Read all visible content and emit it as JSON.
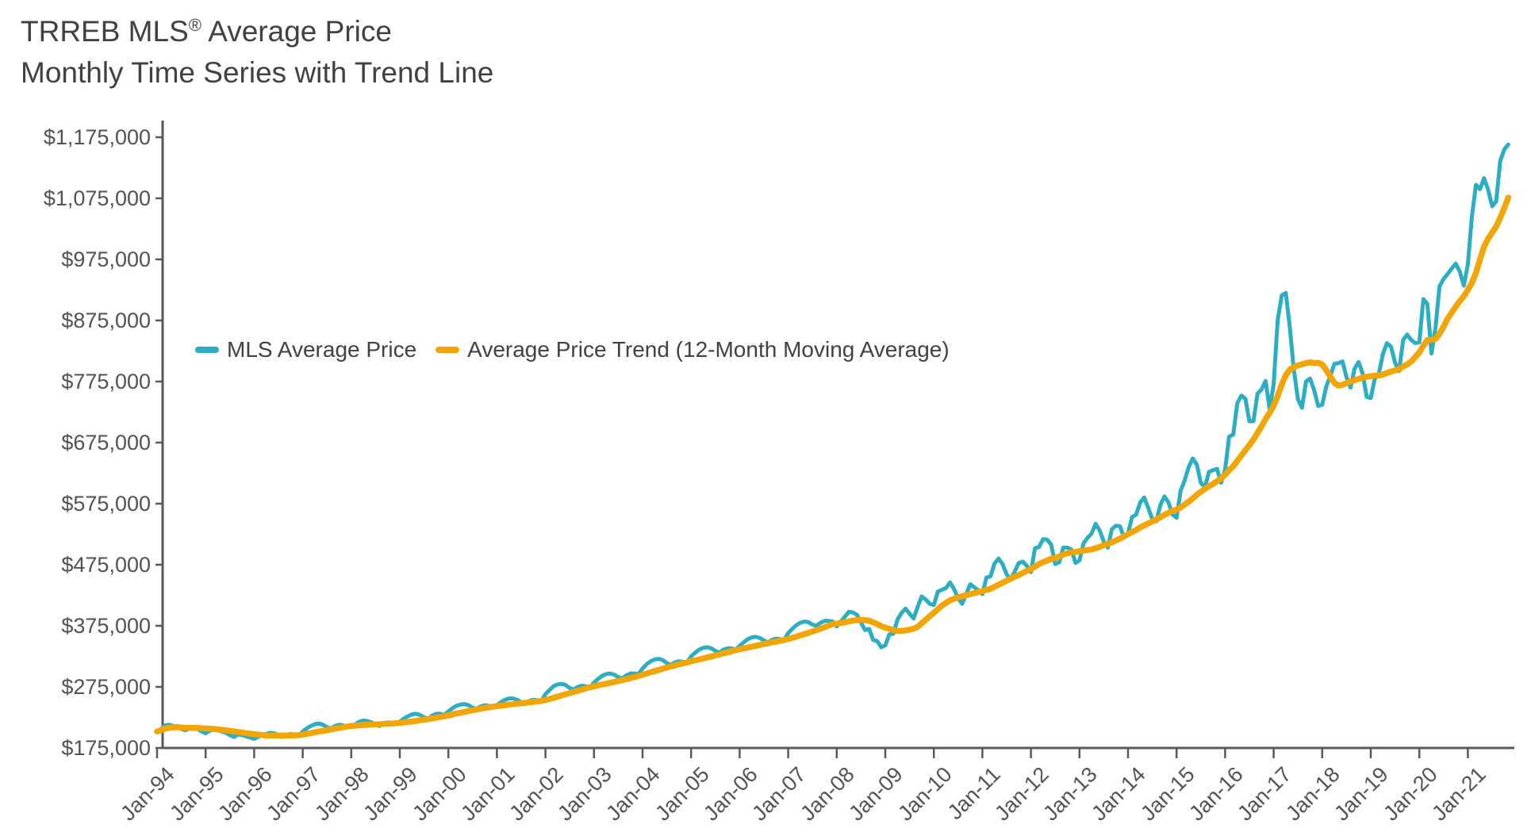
{
  "title": {
    "line1_brand": "TRREB MLS",
    "line1_reg": "®",
    "line1_rest": " Average Price",
    "line2": "Monthly Time Series with Trend Line"
  },
  "axes": {
    "line_color": "#58595B",
    "text_color": "#515254"
  },
  "chart_data": {
    "type": "line",
    "title": "TRREB MLS® Average Price — Monthly Time Series with Trend Line",
    "x_start": "Jan-94",
    "x_end": "Nov-21",
    "months_per_point": 1,
    "grid": false,
    "legend_position": "inside-upper-left",
    "ylim": [
      175000,
      1175000
    ],
    "y_tick_step": 100000,
    "y_tick_labels": [
      "$175,000",
      "$275,000",
      "$375,000",
      "$475,000",
      "$575,000",
      "$675,000",
      "$775,000",
      "$875,000",
      "$975,000",
      "$1,075,000",
      "$1,175,000"
    ],
    "x_tick_labels": [
      "Jan-94",
      "Jan-95",
      "Jan-96",
      "Jan-97",
      "Jan-98",
      "Jan-99",
      "Jan-00",
      "Jan-01",
      "Jan-02",
      "Jan-03",
      "Jan-04",
      "Jan-05",
      "Jan-06",
      "Jan-07",
      "Jan-08",
      "Jan-09",
      "Jan-10",
      "Jan-11",
      "Jan-12",
      "Jan-13",
      "Jan-14",
      "Jan-15",
      "Jan-16",
      "Jan-17",
      "Jan-18",
      "Jan-19",
      "Jan-20",
      "Jan-21"
    ],
    "series": [
      {
        "name": "MLS Average Price",
        "color": "#2BADC3",
        "values": [
          202000,
          206000,
          212000,
          213000,
          211000,
          210000,
          206000,
          204000,
          207000,
          208000,
          206000,
          202000,
          199000,
          203000,
          205000,
          204000,
          202000,
          200000,
          196000,
          193000,
          197000,
          196000,
          194000,
          192000,
          190000,
          193000,
          196000,
          198000,
          200000,
          199000,
          196000,
          193000,
          196000,
          198000,
          197000,
          195000,
          202000,
          207000,
          211000,
          214000,
          215000,
          213000,
          209000,
          207000,
          211000,
          213000,
          212000,
          209000,
          210000,
          214000,
          218000,
          220000,
          219000,
          217000,
          213000,
          211000,
          215000,
          217000,
          216000,
          214000,
          218000,
          223000,
          227000,
          230000,
          231000,
          229000,
          225000,
          223000,
          228000,
          231000,
          231000,
          229000,
          235000,
          240000,
          244000,
          246000,
          247000,
          245000,
          241000,
          239000,
          243000,
          245000,
          244000,
          242000,
          245000,
          250000,
          254000,
          256000,
          256000,
          254000,
          250000,
          248000,
          252000,
          254000,
          253000,
          252000,
          263000,
          270000,
          276000,
          279000,
          280000,
          278000,
          273000,
          271000,
          275000,
          277000,
          276000,
          274000,
          282000,
          288000,
          293000,
          296000,
          297000,
          295000,
          291000,
          289000,
          294000,
          297000,
          297000,
          296000,
          305000,
          312000,
          317000,
          320000,
          321000,
          319000,
          314000,
          311000,
          315000,
          317000,
          316000,
          315000,
          325000,
          331000,
          336000,
          339000,
          340000,
          338000,
          334000,
          331000,
          336000,
          338000,
          338000,
          336000,
          342000,
          348000,
          353000,
          356000,
          357000,
          355000,
          351000,
          348000,
          352000,
          354000,
          353000,
          352000,
          363000,
          370000,
          376000,
          380000,
          382000,
          381000,
          377000,
          375000,
          380000,
          383000,
          383000,
          382000,
          374000,
          382000,
          390000,
          398000,
          397000,
          393000,
          380000,
          368000,
          370000,
          352000,
          350000,
          340000,
          343000,
          361000,
          362000,
          385000,
          396000,
          403000,
          395000,
          387000,
          406000,
          423000,
          418000,
          411000,
          409000,
          431000,
          434000,
          437000,
          446000,
          435000,
          420000,
          411000,
          427000,
          443000,
          438000,
          433000,
          427000,
          454000,
          456000,
          477000,
          485000,
          476000,
          459000,
          451000,
          464000,
          478000,
          480000,
          473000,
          463000,
          502000,
          504000,
          517000,
          516000,
          508000,
          476000,
          479000,
          503000,
          503000,
          500000,
          478000,
          482000,
          510000,
          519000,
          526000,
          542000,
          531000,
          513000,
          503000,
          533000,
          539000,
          538000,
          520000,
          526000,
          553000,
          557000,
          577000,
          585000,
          568000,
          550000,
          546000,
          573000,
          587000,
          577000,
          557000,
          552000,
          596000,
          613000,
          635000,
          649000,
          639000,
          609000,
          602000,
          627000,
          630000,
          632000,
          609000,
          631000,
          685000,
          688000,
          739000,
          752000,
          747000,
          710000,
          710000,
          755000,
          762000,
          776000,
          730000,
          771000,
          876000,
          916000,
          920000,
          863000,
          793000,
          746000,
          732000,
          775000,
          780000,
          761000,
          735000,
          737000,
          767000,
          784000,
          804000,
          805000,
          808000,
          782000,
          765000,
          796000,
          807000,
          788000,
          750000,
          748000,
          780000,
          788000,
          820000,
          838000,
          832000,
          806000,
          792000,
          843000,
          852000,
          843000,
          838000,
          839000,
          910000,
          902000,
          821000,
          863000,
          931000,
          943000,
          951000,
          960000,
          968000,
          955000,
          932000,
          967000,
          1045000,
          1097000,
          1090000,
          1108000,
          1089000,
          1062000,
          1070000,
          1136000,
          1155000,
          1163000
        ]
      },
      {
        "name": "Average Price Trend (12-Month Moving Average)",
        "color": "#F4A506",
        "derived": "12-month trailing moving average of MLS Average Price"
      }
    ]
  }
}
